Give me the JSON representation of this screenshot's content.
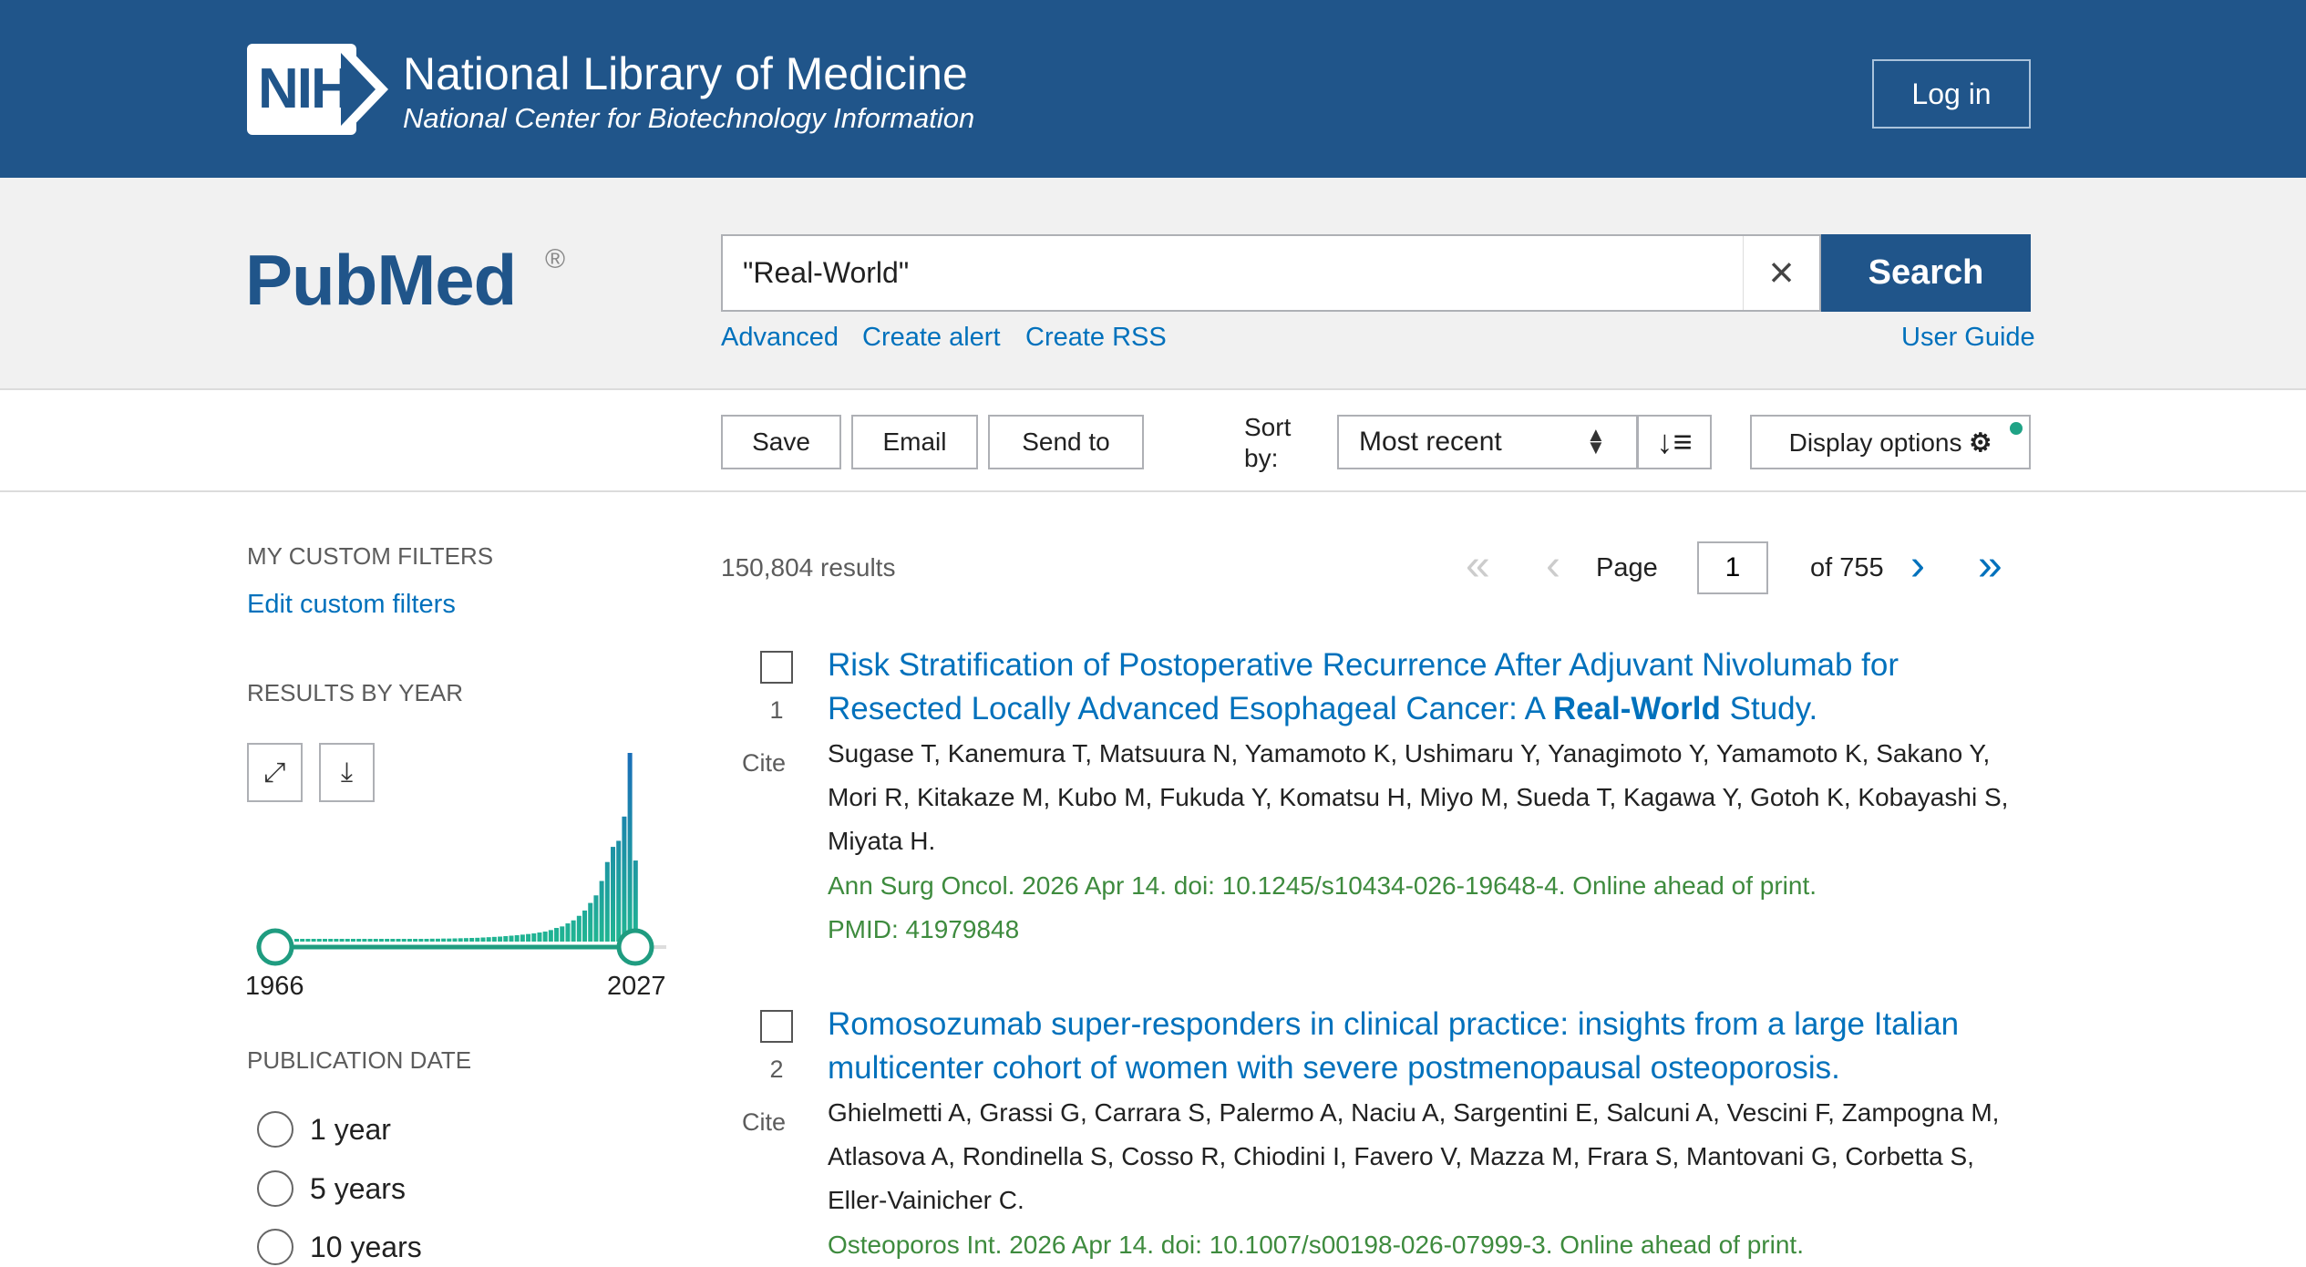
{
  "header": {
    "logo_text": "NIH",
    "org": "National Library of Medicine",
    "sub": "National Center for Biotechnology Information",
    "login": "Log in"
  },
  "search": {
    "logo": "PubMed",
    "reg": "®",
    "query": "\"Real-World\"",
    "clear_icon": "close-icon",
    "button": "Search",
    "links": [
      "Advanced",
      "Create alert",
      "Create RSS"
    ],
    "guide": "User Guide"
  },
  "toolbar": {
    "save": "Save",
    "email": "Email",
    "send": "Send to",
    "sort_label": "Sort by:",
    "sort_value": "Most recent",
    "sort_order_icon": "sort-descending-icon",
    "display": "Display options",
    "gear": "⚙"
  },
  "sidebar": {
    "custom_heading": "MY CUSTOM FILTERS",
    "edit": "Edit custom filters",
    "year_heading": "RESULTS BY YEAR",
    "start_year": "1966",
    "end_year": "2027",
    "pub_heading": "PUBLICATION DATE",
    "dates": [
      "1 year",
      "5 years",
      "10 years"
    ]
  },
  "colors": {
    "brand": "#20558a",
    "link": "#0071bc",
    "journal": "#3e8b3e",
    "accent": "#20a386"
  },
  "chart_data": {
    "type": "bar",
    "title": "",
    "xlabel": "",
    "ylabel": "",
    "range": [
      1966,
      2027
    ],
    "categories": [
      1966,
      1967,
      1968,
      1969,
      1970,
      1971,
      1972,
      1973,
      1974,
      1975,
      1976,
      1977,
      1978,
      1979,
      1980,
      1981,
      1982,
      1983,
      1984,
      1985,
      1986,
      1987,
      1988,
      1989,
      1990,
      1991,
      1992,
      1993,
      1994,
      1995,
      1996,
      1997,
      1998,
      1999,
      2000,
      2001,
      2002,
      2003,
      2004,
      2005,
      2006,
      2007,
      2008,
      2009,
      2010,
      2011,
      2012,
      2013,
      2014,
      2015,
      2016,
      2017,
      2018,
      2019,
      2020,
      2021,
      2022,
      2023,
      2024,
      2025,
      2026
    ],
    "values": [
      320,
      320,
      320,
      320,
      320,
      320,
      320,
      320,
      320,
      320,
      320,
      320,
      320,
      320,
      320,
      320,
      320,
      320,
      320,
      320,
      340,
      340,
      360,
      360,
      380,
      380,
      400,
      400,
      420,
      440,
      460,
      480,
      500,
      540,
      580,
      620,
      660,
      720,
      780,
      840,
      920,
      1000,
      1080,
      1200,
      1320,
      1520,
      1800,
      2000,
      2400,
      2800,
      3400,
      4100,
      5100,
      6100,
      8000,
      10500,
      12500,
      13300,
      16500,
      24900,
      10700
    ]
  },
  "results": {
    "count": "150,804 results",
    "page_label": "Page",
    "page": "1",
    "of": "of 755",
    "items": [
      {
        "num": "1",
        "cite": "Cite",
        "title": [
          {
            "t": "Risk Stratification of Postoperative Recurrence After Adjuvant Nivolumab for Resected Locally Advanced Esophageal Cancer: A "
          },
          {
            "t": "Real-World",
            "b": true
          },
          {
            "t": " Study."
          }
        ],
        "authors": "Sugase T, Kanemura T, Matsuura N, Yamamoto K, Ushimaru Y, Yanagimoto Y, Yamamoto K, Sakano Y, Mori R, Kitakaze M, Kubo M, Fukuda Y, Komatsu H, Miyo M, Sueda T, Kagawa Y, Gotoh K, Kobayashi S, Miyata H.",
        "journal": "Ann Surg Oncol. 2026 Apr 14. doi: 10.1245/s10434-026-19648-4. Online ahead of print.",
        "pmid": "PMID: 41979848"
      },
      {
        "num": "2",
        "cite": "Cite",
        "title": [
          {
            "t": "Romosozumab super-responders in clinical practice: insights from a large Italian multicenter cohort of women with severe postmenopausal osteoporosis."
          }
        ],
        "authors": "Ghielmetti A, Grassi G, Carrara S, Palermo A, Naciu A, Sargentini E, Salcuni A, Vescini F, Zampogna M, Atlasova A, Rondinella S, Cosso R, Chiodini I, Favero V, Mazza M, Frara S, Mantovani G, Corbetta S, Eller-Vainicher C.",
        "journal": "Osteoporos Int. 2026 Apr 14. doi: 10.1007/s00198-026-07999-3. Online ahead of print."
      }
    ]
  }
}
